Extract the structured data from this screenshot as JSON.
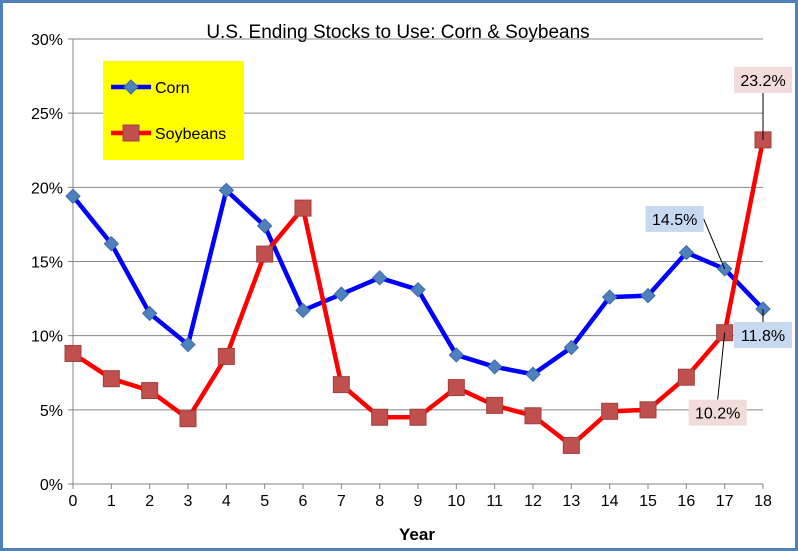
{
  "chart_data": {
    "type": "line",
    "title": "U.S. Ending Stocks to Use: Corn & Soybeans",
    "xlabel": "Year",
    "ylabel": "",
    "x": [
      0,
      1,
      2,
      3,
      4,
      5,
      6,
      7,
      8,
      9,
      10,
      11,
      12,
      13,
      14,
      15,
      16,
      17,
      18
    ],
    "ylim": [
      0,
      30
    ],
    "y_ticks": [
      0,
      5,
      10,
      15,
      20,
      25,
      30
    ],
    "y_tick_labels": [
      "0%",
      "5%",
      "10%",
      "15%",
      "20%",
      "25%",
      "30%"
    ],
    "grid": "horizontal",
    "legend_position": "top-left",
    "legend_background": "#ffff00",
    "series": [
      {
        "name": "Corn",
        "color": "#0000ff",
        "marker": "diamond",
        "marker_color": "#4f81bd",
        "values": [
          19.4,
          16.2,
          11.5,
          9.4,
          19.8,
          17.4,
          11.7,
          12.8,
          13.9,
          13.1,
          8.7,
          7.9,
          7.4,
          9.2,
          12.6,
          12.7,
          15.6,
          14.5,
          11.8
        ]
      },
      {
        "name": "Soybeans",
        "color": "#ff0000",
        "marker": "square",
        "marker_color": "#c0504d",
        "values": [
          8.8,
          7.1,
          6.3,
          4.4,
          8.6,
          15.5,
          18.6,
          6.7,
          4.5,
          4.5,
          6.5,
          5.3,
          4.6,
          2.6,
          4.9,
          5.0,
          7.2,
          10.2,
          23.2
        ]
      }
    ],
    "annotations": [
      {
        "text": "14.5%",
        "series": 0,
        "point": 17,
        "bg": "#c6d9f1",
        "placement": "above-left"
      },
      {
        "text": "11.8%",
        "series": 0,
        "point": 18,
        "bg": "#c6d9f1",
        "placement": "below"
      },
      {
        "text": "10.2%",
        "series": 1,
        "point": 17,
        "bg": "#f2dcdb",
        "placement": "below"
      },
      {
        "text": "23.2%",
        "series": 1,
        "point": 18,
        "bg": "#f2dcdb",
        "placement": "above"
      }
    ]
  }
}
